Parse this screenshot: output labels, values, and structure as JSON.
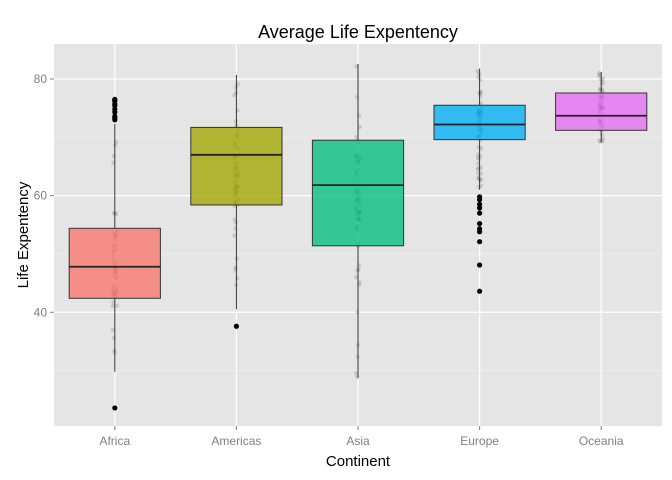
{
  "chart_data": {
    "type": "box",
    "title": "Average Life Expentency",
    "xlabel": "Continent",
    "ylabel": "Life Expentency",
    "ylim": [
      20.5,
      86
    ],
    "yticks": [
      40,
      60,
      80
    ],
    "grid": true,
    "legend": "none",
    "categories": [
      "Africa",
      "Americas",
      "Asia",
      "Europe",
      "Oceania"
    ],
    "boxes": [
      {
        "category": "Africa",
        "min": 29.8,
        "q1": 42.4,
        "median": 47.8,
        "q3": 54.4,
        "max": 72.3,
        "outliers": [
          23.6,
          73.0,
          73.3,
          73.6,
          74.3,
          74.8,
          75.4,
          75.7,
          76.2,
          76.4,
          76.5
        ],
        "color": "#F8766D"
      },
      {
        "category": "Americas",
        "min": 40.5,
        "q1": 58.4,
        "median": 67.0,
        "q3": 71.7,
        "max": 80.7,
        "outliers": [
          37.6
        ],
        "color": "#A3A500"
      },
      {
        "category": "Asia",
        "min": 28.8,
        "q1": 51.4,
        "median": 61.8,
        "q3": 69.5,
        "max": 82.6,
        "outliers": [],
        "color": "#00BF7D"
      },
      {
        "category": "Europe",
        "min": 61.0,
        "q1": 69.6,
        "median": 72.2,
        "q3": 75.5,
        "max": 81.8,
        "outliers": [
          43.6,
          48.1,
          52.1,
          53.8,
          54.3,
          55.2,
          57.0,
          57.9,
          58.5,
          59.3,
          59.8
        ],
        "color": "#00B0F6"
      },
      {
        "category": "Oceania",
        "min": 69.1,
        "q1": 71.2,
        "median": 73.7,
        "q3": 77.6,
        "max": 81.2,
        "outliers": [],
        "color": "#E76BF3"
      }
    ]
  }
}
